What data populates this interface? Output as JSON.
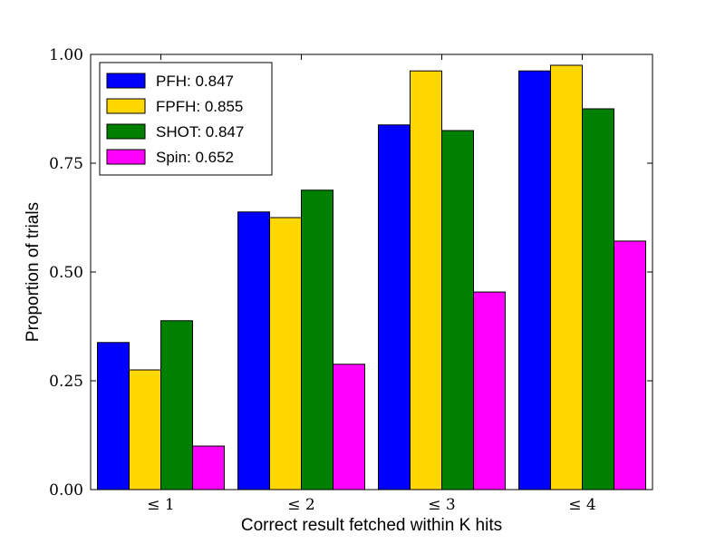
{
  "chart_data": {
    "type": "bar",
    "categories": [
      "≤ 1",
      "≤ 2",
      "≤ 3",
      "≤ 4"
    ],
    "series": [
      {
        "name": "PFH: 0.847",
        "color": "#0000FF",
        "values": [
          0.338,
          0.638,
          0.838,
          0.962
        ]
      },
      {
        "name": "FPFH: 0.855",
        "color": "#FFD700",
        "values": [
          0.275,
          0.625,
          0.962,
          0.975
        ]
      },
      {
        "name": "SHOT: 0.847",
        "color": "#008000",
        "values": [
          0.388,
          0.688,
          0.825,
          0.875
        ]
      },
      {
        "name": "Spin: 0.652",
        "color": "#FF00FF",
        "values": [
          0.1,
          0.288,
          0.454,
          0.571
        ]
      }
    ],
    "title": "",
    "xlabel": "Correct result fetched within K hits",
    "ylabel": "Proportion of trials",
    "ylim": [
      0,
      1
    ],
    "yticks": [
      "0.00",
      "0.25",
      "0.50",
      "0.75",
      "1.00"
    ],
    "legend_position": "top-left",
    "grid": false
  }
}
